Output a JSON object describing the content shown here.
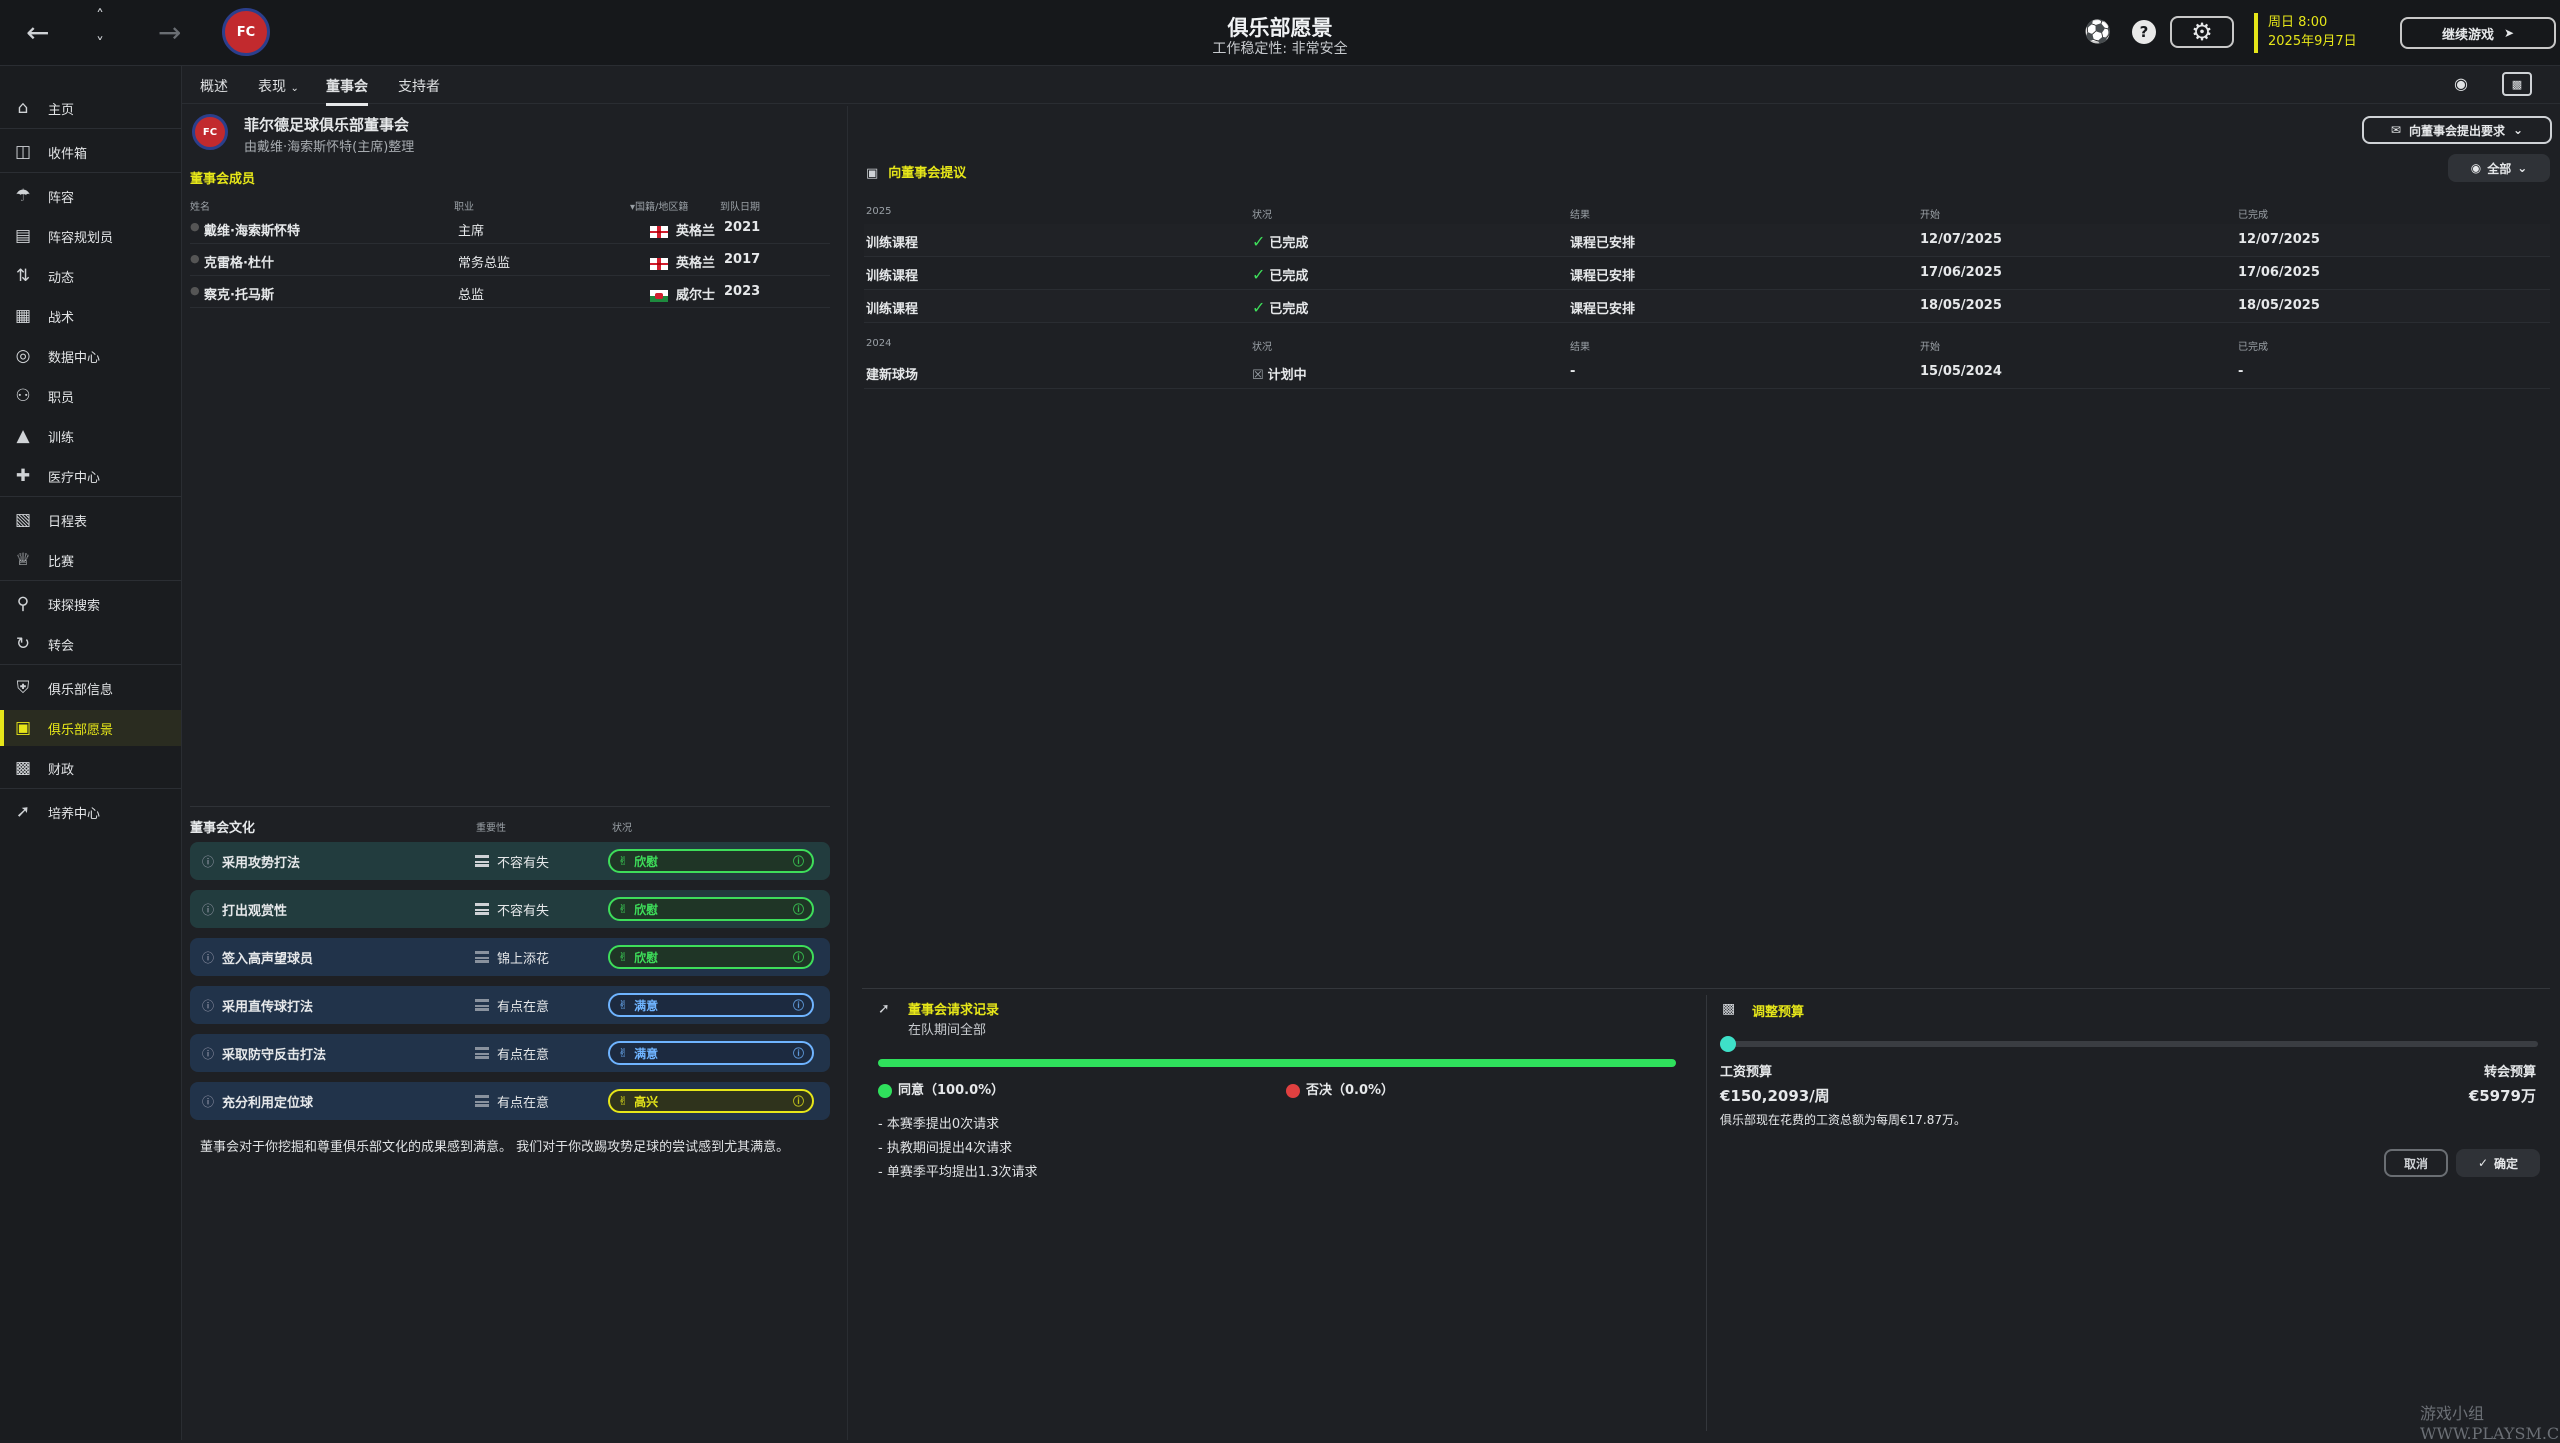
{
  "header": {
    "title": "俱乐部愿景",
    "subtitle": "工作稳定性: 非常安全",
    "date_line1": "周日 8:00",
    "date_line2": "2025年9月7日",
    "continue_label": "继续游戏",
    "help_label": "?"
  },
  "sidebar": {
    "items": [
      {
        "label": "主页",
        "icon": "home-icon"
      },
      {
        "label": "收件箱",
        "icon": "inbox-icon"
      },
      {
        "label": "阵容",
        "icon": "squad-icon"
      },
      {
        "label": "阵容规划员",
        "icon": "clipboard-icon"
      },
      {
        "label": "动态",
        "icon": "dynamics-icon"
      },
      {
        "label": "战术",
        "icon": "tactics-icon"
      },
      {
        "label": "数据中心",
        "icon": "data-hub-icon"
      },
      {
        "label": "职员",
        "icon": "staff-icon"
      },
      {
        "label": "训练",
        "icon": "training-icon"
      },
      {
        "label": "医疗中心",
        "icon": "medical-icon"
      },
      {
        "label": "日程表",
        "icon": "calendar-icon"
      },
      {
        "label": "比赛",
        "icon": "trophy-icon"
      },
      {
        "label": "球探搜索",
        "icon": "search-icon"
      },
      {
        "label": "转会",
        "icon": "transfer-icon"
      },
      {
        "label": "俱乐部信息",
        "icon": "shield-icon"
      },
      {
        "label": "俱乐部愿景",
        "icon": "briefcase-icon"
      },
      {
        "label": "财政",
        "icon": "finance-icon"
      },
      {
        "label": "培养中心",
        "icon": "development-icon"
      }
    ]
  },
  "tabs": [
    "概述",
    "表现",
    "董事会",
    "支持者"
  ],
  "board": {
    "name": "菲尔德足球俱乐部董事会",
    "by": "由戴维·海索斯怀特(主席)整理",
    "members_title": "董事会成员",
    "cols": [
      "姓名",
      "职业",
      "国籍/地区籍",
      "到队日期"
    ],
    "members": [
      {
        "name": "戴维·海索斯怀特",
        "role": "主席",
        "nation": "英格兰",
        "flag": "eng",
        "year": "2021"
      },
      {
        "name": "克雷格·杜什",
        "role": "常务总监",
        "nation": "英格兰",
        "flag": "eng",
        "year": "2017"
      },
      {
        "name": "察克·托马斯",
        "role": "总监",
        "nation": "威尔士",
        "flag": "wal",
        "year": "2023"
      }
    ]
  },
  "culture": {
    "title": "董事会文化",
    "col_importance": "重要性",
    "col_status": "状况",
    "rows": [
      {
        "label": "采用攻势打法",
        "importance": "不容有失",
        "status": "欣慰",
        "tone": "green",
        "bg": "teal"
      },
      {
        "label": "打出观赏性",
        "importance": "不容有失",
        "status": "欣慰",
        "tone": "green",
        "bg": "teal"
      },
      {
        "label": "签入高声望球员",
        "importance": "锦上添花",
        "status": "欣慰",
        "tone": "green",
        "bg": "navy"
      },
      {
        "label": "采用直传球打法",
        "importance": "有点在意",
        "status": "满意",
        "tone": "blue",
        "bg": "navy"
      },
      {
        "label": "采取防守反击打法",
        "importance": "有点在意",
        "status": "满意",
        "tone": "blue",
        "bg": "navy"
      },
      {
        "label": "充分利用定位球",
        "importance": "有点在意",
        "status": "高兴",
        "tone": "yellow",
        "bg": "navy"
      }
    ],
    "summary": "董事会对于你挖掘和尊重俱乐部文化的成果感到满意。 我们对于你改踢攻势足球的尝试感到尤其满意。"
  },
  "proposals": {
    "title": "向董事会提议",
    "request_button": "向董事会提出要求",
    "filter_label": "全部",
    "cols": [
      "状况",
      "结果",
      "开始",
      "已完成"
    ],
    "groups": [
      {
        "year": "2025",
        "rows": [
          {
            "item": "训练课程",
            "status": "已完成",
            "result": "课程已安排",
            "start": "12/07/2025",
            "done": "12/07/2025"
          },
          {
            "item": "训练课程",
            "status": "已完成",
            "result": "课程已安排",
            "start": "17/06/2025",
            "done": "17/06/2025"
          },
          {
            "item": "训练课程",
            "status": "已完成",
            "result": "课程已安排",
            "start": "18/05/2025",
            "done": "18/05/2025"
          }
        ]
      },
      {
        "year": "2024",
        "rows": [
          {
            "item": "建新球场",
            "status": "计划中",
            "result": "-",
            "start": "15/05/2024",
            "done": "-"
          }
        ]
      }
    ]
  },
  "requests": {
    "title": "董事会请求记录",
    "subtitle": "在队期间全部",
    "approve_label": "同意（100.0%）",
    "reject_label": "否决（0.0%）",
    "approve_pct": 100.0,
    "colors": {
      "approve": "#2fe05c",
      "reject": "#e04040"
    },
    "bullets": [
      "- 本赛季提出0次请求",
      "- 执教期间提出4次请求",
      "- 单赛季平均提出1.3次请求"
    ]
  },
  "budget": {
    "title": "调整预算",
    "wage_label": "工资预算",
    "wage_value": "€150,2093/周",
    "transfer_label": "转会预算",
    "transfer_value": "€5979万",
    "note": "俱乐部现在花费的工资总额为每周€17.87万。",
    "slider_fraction": 0.0,
    "cancel_label": "取消",
    "confirm_label": "确定"
  },
  "watermark": "游戏小组 WWW.PLAYSM.CC",
  "colors": {
    "accent": "#e6e619",
    "good": "#3ede5a",
    "info": "#6fb4ff"
  }
}
